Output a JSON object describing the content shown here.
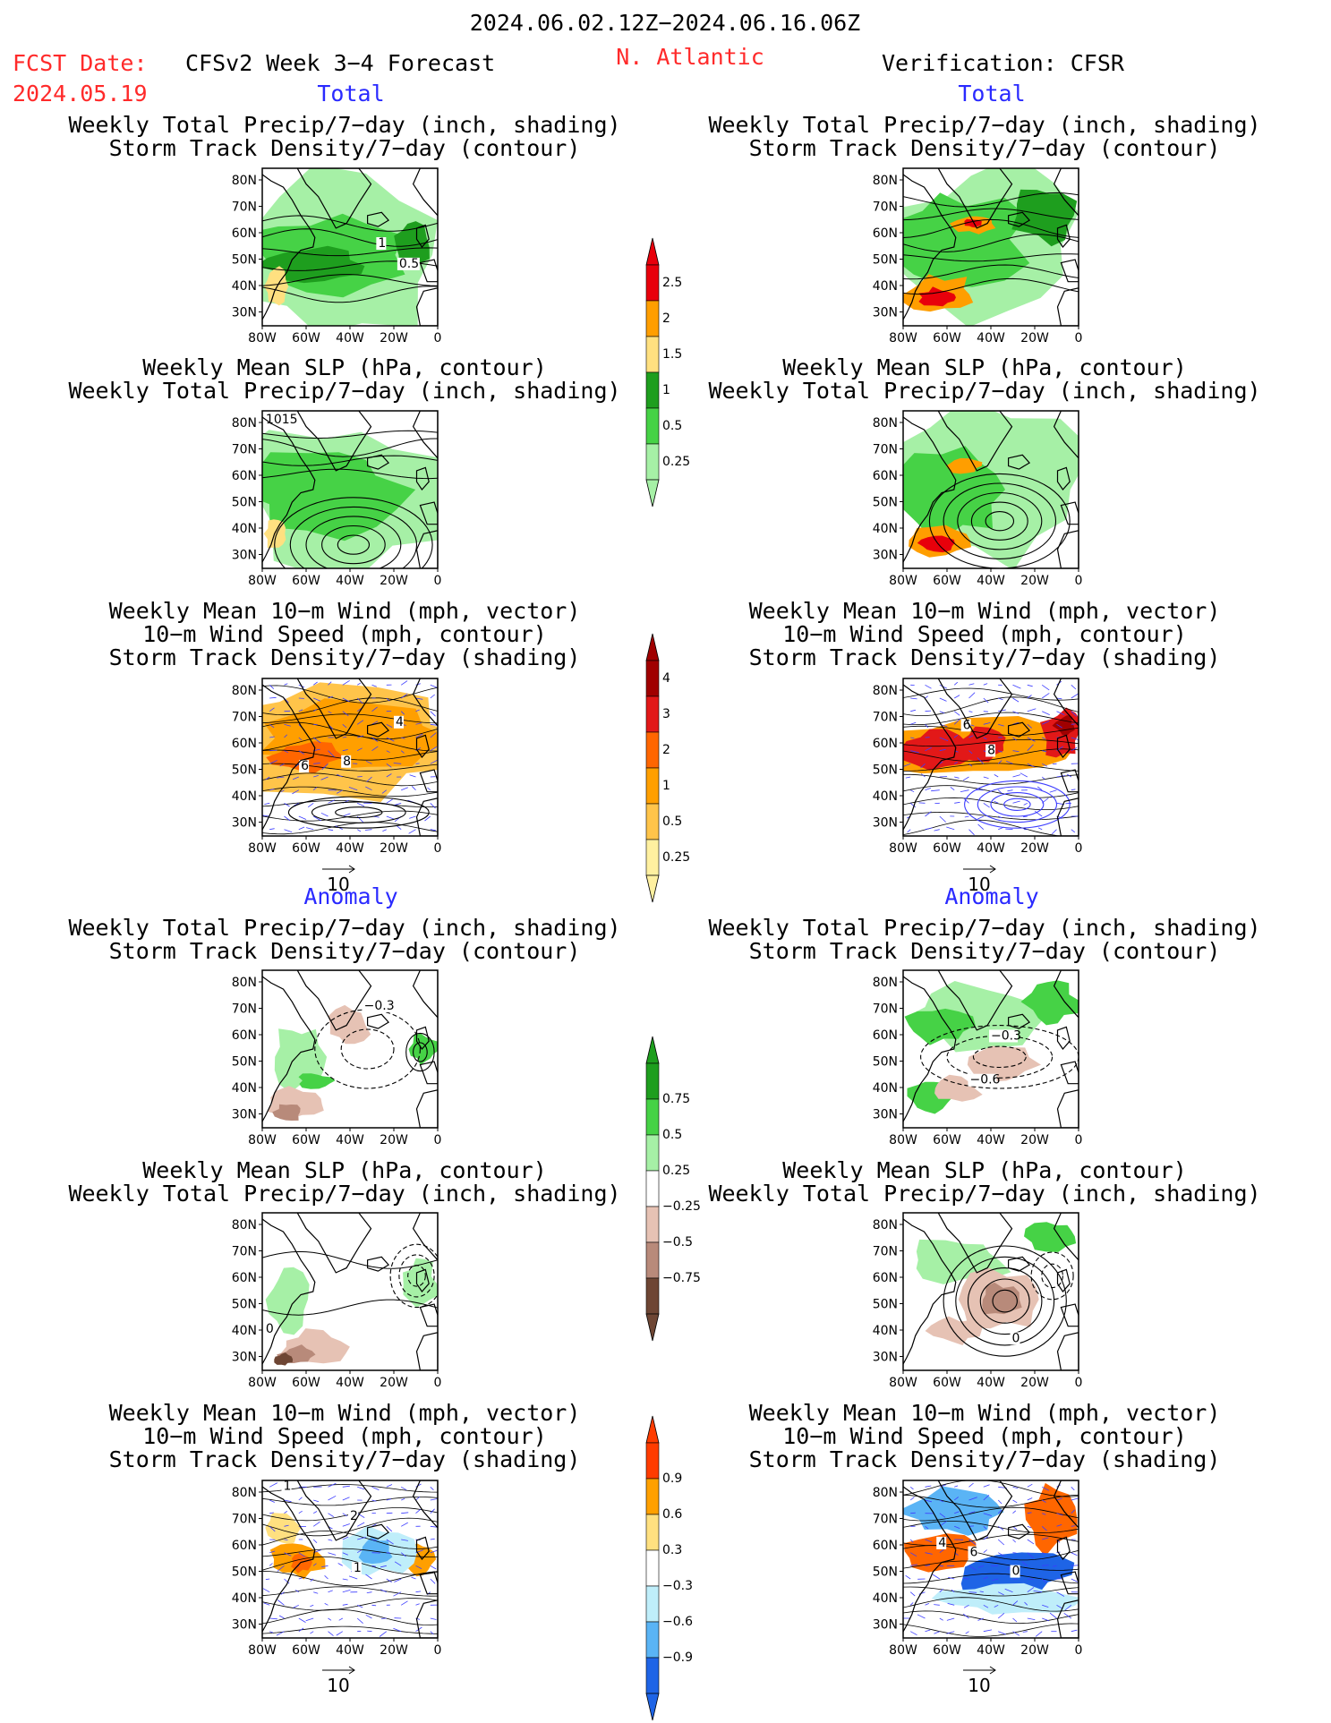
{
  "header": {
    "period": "2024.06.02.12Z−2024.06.16.06Z",
    "fcst_label": "FCST Date:",
    "fcst_date": "2024.05.19",
    "model": "CFSv2 Week 3−4 Forecast",
    "region": "N. Atlantic",
    "verification": "Verification: CFSR"
  },
  "sections": {
    "total": "Total",
    "anomaly": "Anomaly"
  },
  "titles": {
    "precip_storm": [
      "Weekly Total Precip/7−day (inch, shading)",
      "Storm Track Density/7−day (contour)"
    ],
    "slp_precip": [
      "Weekly Mean SLP (hPa, contour)",
      "Weekly Total Precip/7−day (inch, shading)"
    ],
    "wind_storm": [
      "Weekly Mean 10−m Wind (mph, vector)",
      "10−m Wind Speed (mph, contour)",
      "Storm Track Density/7−day (shading)"
    ]
  },
  "axes": {
    "lat_ticks": [
      "80N",
      "70N",
      "60N",
      "50N",
      "40N",
      "30N"
    ],
    "lon_ticks": [
      "80W",
      "60W",
      "40W",
      "20W",
      "0"
    ]
  },
  "vector_ref": "10",
  "contour_labels": {
    "p1_left": [
      "1",
      "0.5"
    ],
    "p2_left": [
      "1015"
    ],
    "p3_left": [
      "4",
      "6",
      "8"
    ],
    "p3_right": [
      "6",
      "8"
    ],
    "p4_left": [
      "−0.3"
    ],
    "p4_right": [
      "−0.3",
      "−0.6"
    ],
    "p5_left": [
      "0"
    ],
    "p5_right": [
      "0"
    ],
    "p6_left": [
      "1",
      "2",
      "1"
    ],
    "p6_right": [
      "4",
      "6",
      "0"
    ]
  },
  "colorbars": {
    "precip_total": {
      "labels": [
        "2.5",
        "2",
        "1.5",
        "1",
        "0.5",
        "0.25"
      ],
      "colors": [
        "#e8000b",
        "#ff9e00",
        "#ffe080",
        "#1e9e1e",
        "#46d246",
        "#a6f0a6"
      ]
    },
    "storm_total": {
      "labels": [
        "4",
        "3",
        "2",
        "1",
        "0.5",
        "0.25"
      ],
      "colors": [
        "#a00000",
        "#e21818",
        "#ff6600",
        "#ff9f00",
        "#ffc44a",
        "#fff0a0"
      ]
    },
    "precip_anom": {
      "labels": [
        "0.75",
        "0.5",
        "0.25",
        "−0.25",
        "−0.5",
        "−0.75"
      ],
      "colors": [
        "#1e9e1e",
        "#46d246",
        "#a6f0a6",
        "#ffffff",
        "#e6c2b4",
        "#b88a7a",
        "#6e4634"
      ]
    },
    "storm_anom": {
      "labels": [
        "0.9",
        "0.6",
        "0.3",
        "−0.3",
        "−0.6",
        "−0.9"
      ],
      "colors": [
        "#ff3c00",
        "#ffa000",
        "#ffe080",
        "#ffffff",
        "#bfeefa",
        "#5ab4f5",
        "#1e64e6"
      ]
    }
  }
}
